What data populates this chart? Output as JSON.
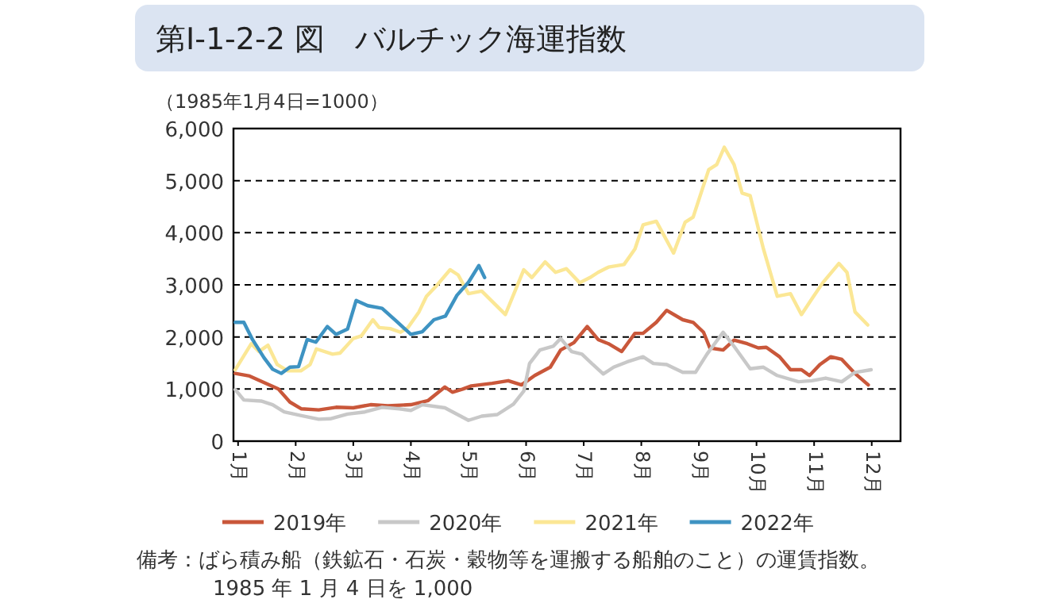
{
  "chart_data": {
    "type": "line",
    "title": "第Ⅰ-1-2-2 図　バルチック海運指数",
    "ylabel": "（1985年1月4日=1000）",
    "xlim": [
      0.92,
      12.5
    ],
    "xticks": [
      {
        "value": 1,
        "label": "1月"
      },
      {
        "value": 2,
        "label": "2月"
      },
      {
        "value": 3,
        "label": "3月"
      },
      {
        "value": 4,
        "label": "4月"
      },
      {
        "value": 5,
        "label": "5月"
      },
      {
        "value": 6,
        "label": "6月"
      },
      {
        "value": 7,
        "label": "7月"
      },
      {
        "value": 8,
        "label": "8月"
      },
      {
        "value": 9,
        "label": "9月"
      },
      {
        "value": 10,
        "label": "10月"
      },
      {
        "value": 11,
        "label": "11月"
      },
      {
        "value": 12,
        "label": "12月"
      }
    ],
    "ylim": [
      0,
      6000
    ],
    "yticks": [
      0,
      {
        "value": 1000,
        "label": "1,000"
      },
      {
        "value": 2000,
        "label": "2,000"
      },
      {
        "value": 3000,
        "label": "3,000"
      },
      {
        "value": 4000,
        "label": "4,000"
      },
      {
        "value": 5000,
        "label": "5,000"
      },
      {
        "value": 6000,
        "label": "6,000"
      }
    ],
    "grid": "y",
    "legend": "bottom",
    "marker": "none",
    "line_style": "solid",
    "series": [
      {
        "name": "2019年",
        "color": "#c9573a",
        "x": [
          0.95,
          1.2,
          1.5,
          1.7,
          1.9,
          2.1,
          2.4,
          2.7,
          3.0,
          3.3,
          3.6,
          4.0,
          4.3,
          4.59,
          4.72,
          4.9,
          5.05,
          5.41,
          5.69,
          5.92,
          6.15,
          6.42,
          6.6,
          6.83,
          7.06,
          7.25,
          7.43,
          7.66,
          7.89,
          8.03,
          8.26,
          8.44,
          8.72,
          8.9,
          9.08,
          9.19,
          9.42,
          9.61,
          9.84,
          10.03,
          10.17,
          10.4,
          10.59,
          10.78,
          10.92,
          11.1,
          11.29,
          11.48,
          11.71,
          11.94
        ],
        "values": [
          1300,
          1250,
          1100,
          1000,
          750,
          620,
          600,
          650,
          640,
          700,
          680,
          700,
          780,
          1040,
          940,
          1000,
          1060,
          1110,
          1160,
          1080,
          1260,
          1420,
          1750,
          1890,
          2200,
          1950,
          1870,
          1720,
          2070,
          2070,
          2280,
          2510,
          2330,
          2280,
          2090,
          1790,
          1750,
          1940,
          1870,
          1790,
          1800,
          1620,
          1370,
          1370,
          1260,
          1470,
          1620,
          1570,
          1300,
          1080
        ]
      },
      {
        "name": "2020年",
        "color": "#c8c8c8",
        "x": [
          0.95,
          1.1,
          1.4,
          1.6,
          1.8,
          2.1,
          2.4,
          2.6,
          2.9,
          3.2,
          3.5,
          3.8,
          4.0,
          4.2,
          4.59,
          5.0,
          5.23,
          5.5,
          5.78,
          5.96,
          6.06,
          6.24,
          6.47,
          6.6,
          6.79,
          6.97,
          7.16,
          7.34,
          7.52,
          7.75,
          8.03,
          8.21,
          8.44,
          8.72,
          8.94,
          9.14,
          9.42,
          9.61,
          9.89,
          10.12,
          10.36,
          10.73,
          10.96,
          11.2,
          11.48,
          11.71,
          11.99
        ],
        "values": [
          990,
          790,
          770,
          700,
          560,
          490,
          420,
          430,
          520,
          560,
          650,
          620,
          590,
          700,
          640,
          400,
          480,
          510,
          710,
          960,
          1490,
          1750,
          1820,
          1970,
          1720,
          1670,
          1470,
          1290,
          1420,
          1520,
          1620,
          1490,
          1470,
          1320,
          1320,
          1670,
          2090,
          1820,
          1390,
          1420,
          1260,
          1140,
          1160,
          1210,
          1140,
          1320,
          1370
        ]
      },
      {
        "name": "2021年",
        "color": "#fbe795",
        "x": [
          0.95,
          1.23,
          1.36,
          1.52,
          1.68,
          1.86,
          2.09,
          2.25,
          2.36,
          2.64,
          2.77,
          3.0,
          3.14,
          3.34,
          3.45,
          3.64,
          3.82,
          3.95,
          4.14,
          4.27,
          4.45,
          4.68,
          4.82,
          5.0,
          5.23,
          5.64,
          5.96,
          6.1,
          6.33,
          6.51,
          6.7,
          6.93,
          7.11,
          7.25,
          7.43,
          7.7,
          7.89,
          8.03,
          8.26,
          8.56,
          8.76,
          8.9,
          9.17,
          9.31,
          9.44,
          9.61,
          9.75,
          9.89,
          10.12,
          10.36,
          10.59,
          10.78,
          10.96,
          11.15,
          11.43,
          11.57,
          11.71,
          11.93
        ],
        "values": [
          1370,
          1870,
          1720,
          1840,
          1470,
          1350,
          1350,
          1470,
          1770,
          1670,
          1690,
          1970,
          2020,
          2330,
          2180,
          2160,
          2090,
          2180,
          2480,
          2780,
          2990,
          3290,
          3190,
          2830,
          2880,
          2430,
          3290,
          3140,
          3440,
          3240,
          3310,
          3040,
          3140,
          3240,
          3340,
          3390,
          3690,
          4150,
          4220,
          3610,
          4200,
          4300,
          5210,
          5310,
          5640,
          5310,
          4760,
          4710,
          3690,
          2780,
          2830,
          2430,
          2730,
          3040,
          3410,
          3240,
          2480,
          2230
        ]
      },
      {
        "name": "2022年",
        "color": "#3e93c2",
        "x": [
          0.95,
          1.1,
          1.25,
          1.45,
          1.6,
          1.75,
          1.9,
          2.05,
          2.2,
          2.35,
          2.55,
          2.7,
          2.9,
          3.05,
          3.25,
          3.5,
          3.75,
          4.0,
          4.2,
          4.4,
          4.6,
          4.8,
          5.0,
          5.18,
          5.28
        ],
        "values": [
          2280,
          2280,
          1950,
          1600,
          1380,
          1300,
          1420,
          1430,
          1950,
          1900,
          2200,
          2050,
          2150,
          2700,
          2600,
          2550,
          2300,
          2050,
          2100,
          2330,
          2400,
          2800,
          3050,
          3370,
          3140
        ]
      }
    ],
    "annotations": [
      "備考：ばら積み船（鉄鉱石・石炭・穀物等を運搬する船舶のこと）の運賃指数。",
      "1985 年 1 月 4 日を 1,000"
    ]
  }
}
